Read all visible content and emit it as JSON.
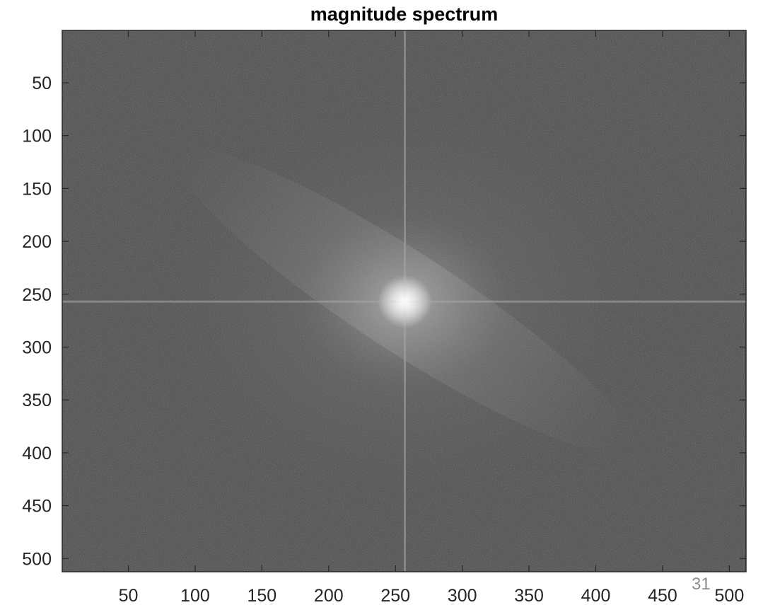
{
  "chart_data": {
    "type": "heatmap",
    "title": "magnitude spectrum",
    "xlabel": "",
    "ylabel": "",
    "xlim": [
      0.5,
      512.5
    ],
    "ylim": [
      0.5,
      512.5
    ],
    "y_reversed": true,
    "x_ticks": [
      50,
      100,
      150,
      200,
      250,
      300,
      350,
      400,
      450,
      500
    ],
    "y_ticks": [
      50,
      100,
      150,
      200,
      250,
      300,
      350,
      400,
      450,
      500
    ],
    "colormap": "gray",
    "image_description": "log magnitude spectrum of a 512x512 image; bright DC peak at center",
    "center_peak": [
      257,
      257
    ],
    "cross_lines": {
      "horizontal_row": 257,
      "vertical_col": 257
    },
    "diagonal_streak": "bright streak from upper-left to lower-right through the center",
    "background_color": "#4a4a4a",
    "peak_color": "#e6e6e6"
  },
  "page_number": "31"
}
